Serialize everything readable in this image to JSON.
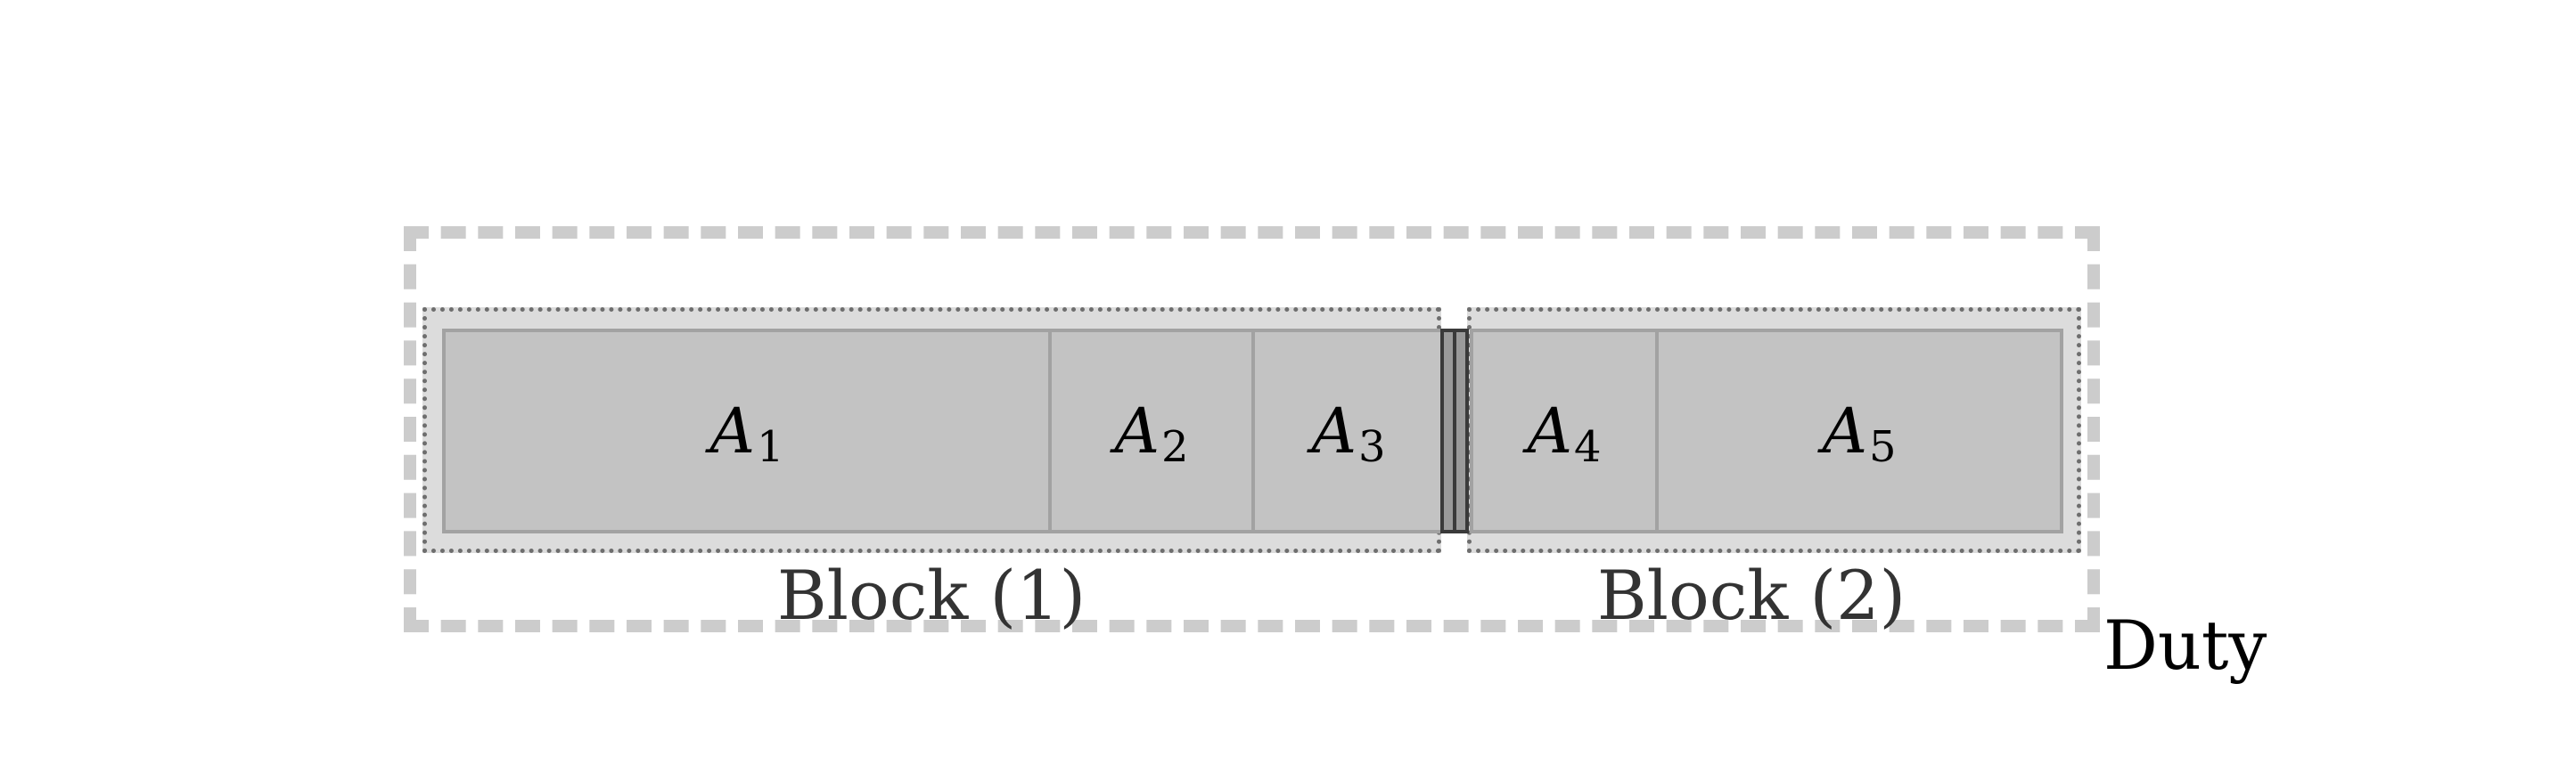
{
  "diagram": {
    "duty_label": "Duty",
    "blocks": [
      {
        "label": "Block (1)"
      },
      {
        "label": "Block (2)"
      }
    ],
    "activities": [
      {
        "symbol": "A",
        "subscript": "1"
      },
      {
        "symbol": "A",
        "subscript": "2"
      },
      {
        "symbol": "A",
        "subscript": "3"
      },
      {
        "symbol": "A",
        "subscript": "4"
      },
      {
        "symbol": "A",
        "subscript": "5"
      }
    ],
    "colors": {
      "activity_fill": "#c3c3c3",
      "activity_border": "#a2a2a2",
      "block_fill": "#dcdcdc",
      "block_border": "#6e6e6e",
      "duty_border": "#cccccc",
      "separator": "#3a3a3a"
    }
  }
}
